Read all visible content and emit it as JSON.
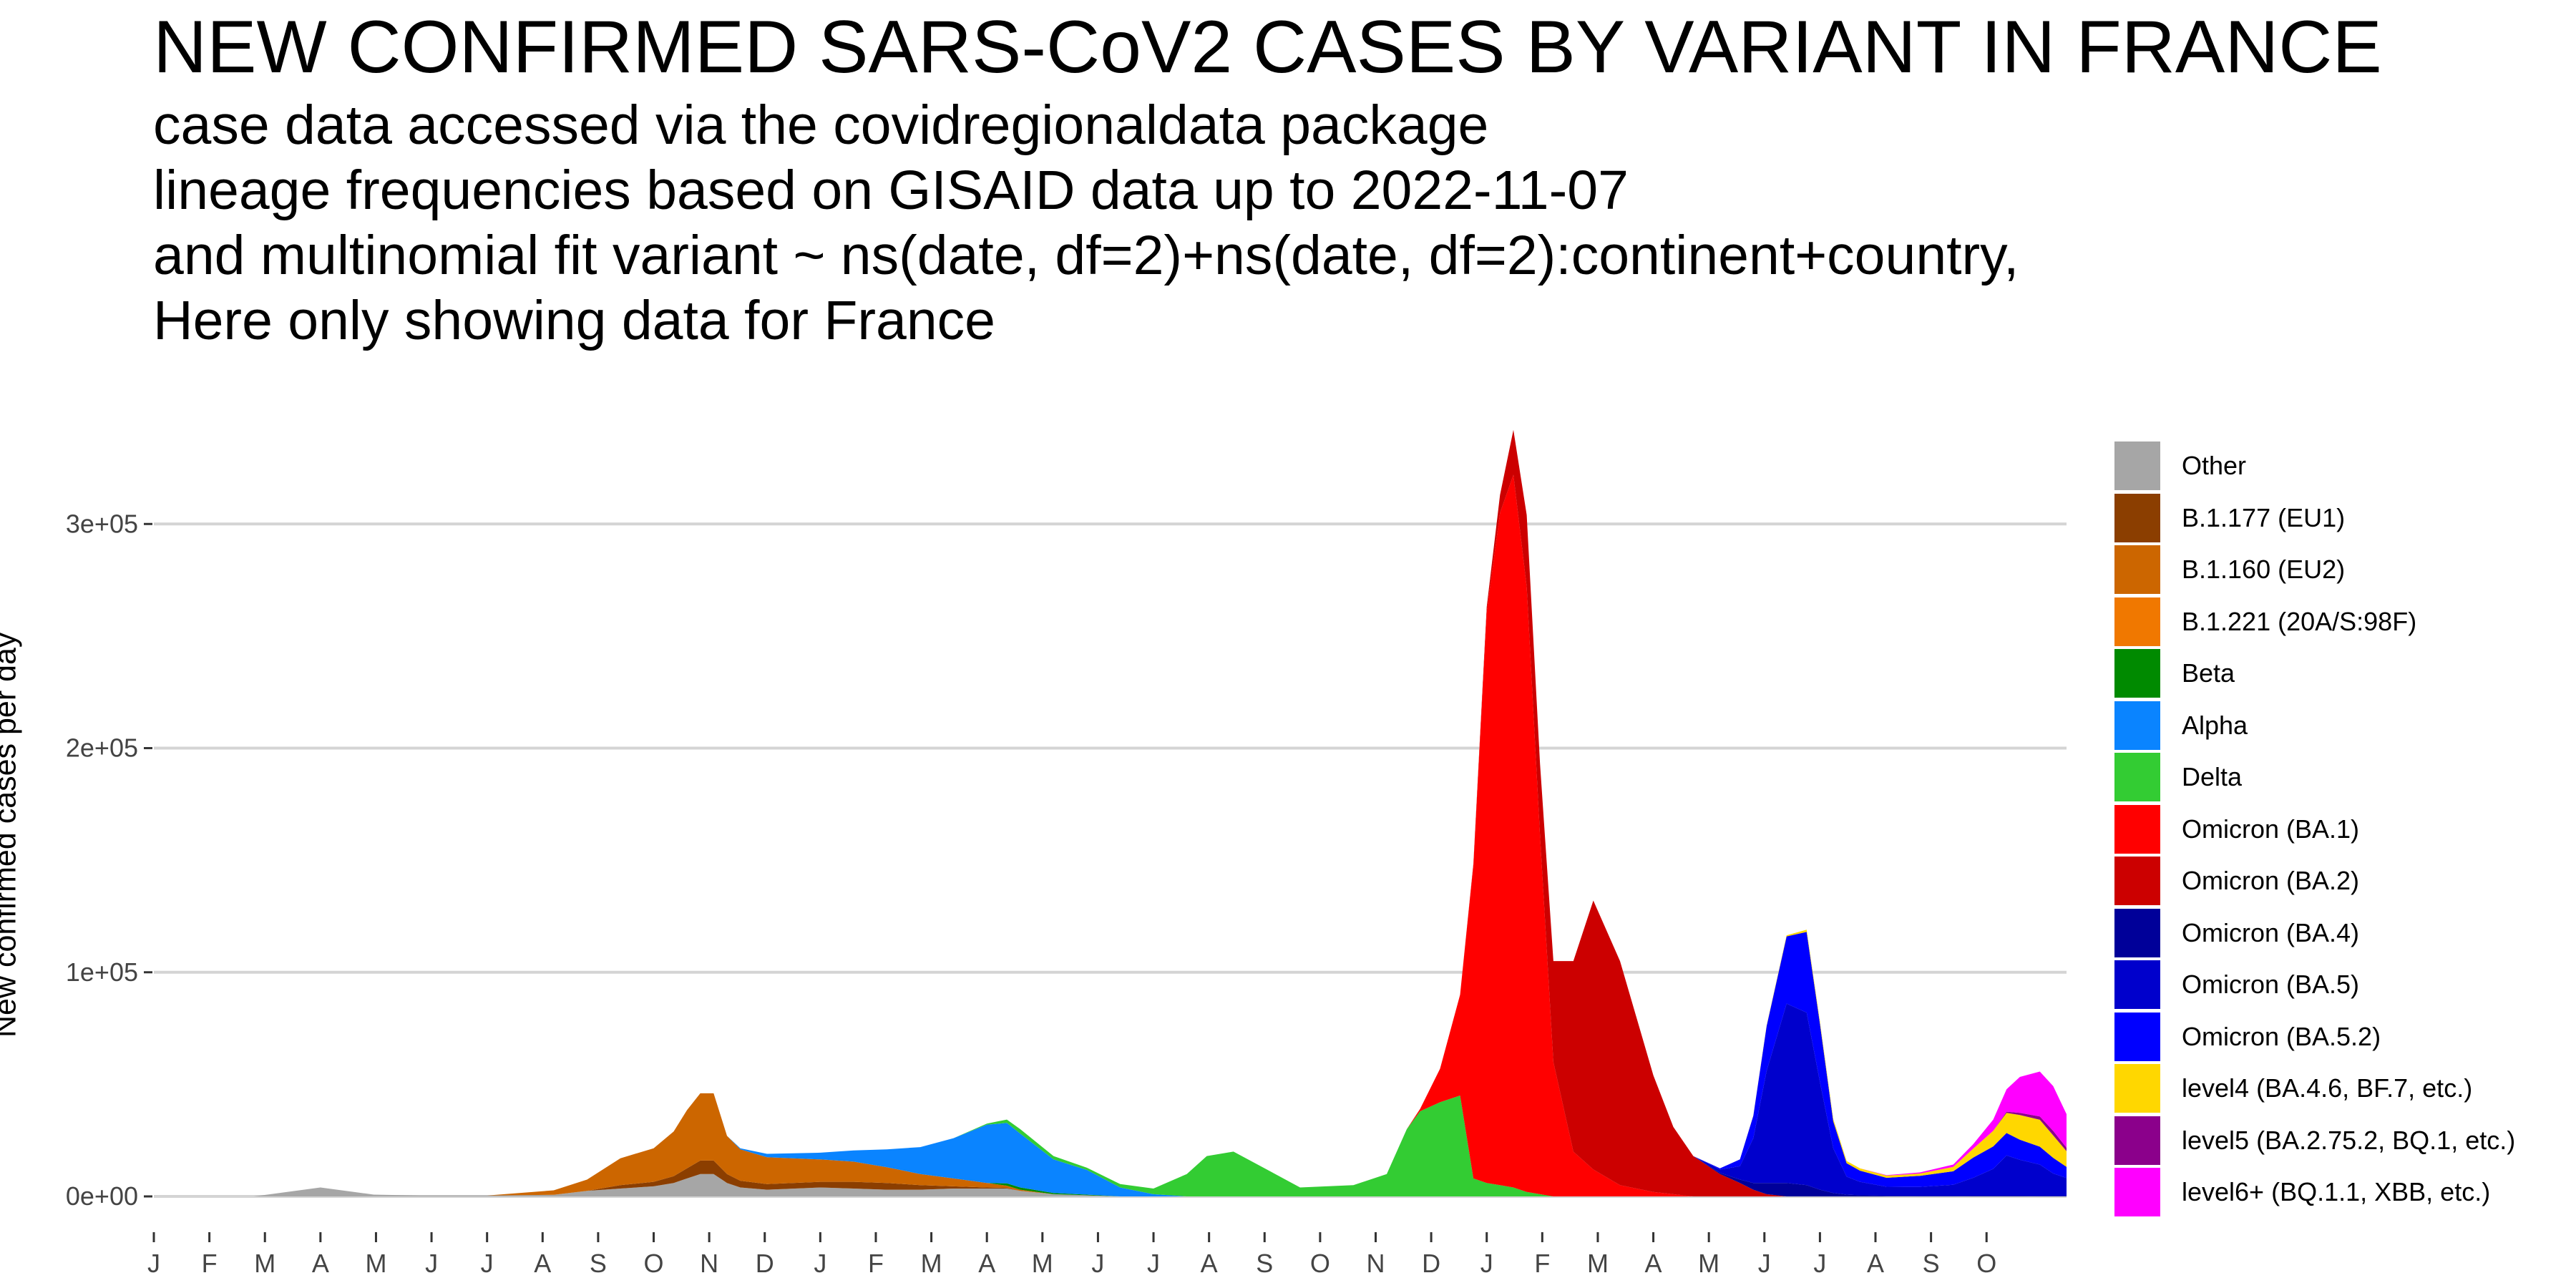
{
  "title": "NEW CONFIRMED SARS-CoV2 CASES BY VARIANT IN FRANCE",
  "subtitle_lines": [
    "case data accessed via the covidregionaldata package",
    "lineage frequencies based on GISAID data up to 2022-11-07",
    "and multinomial fit variant ~ ns(date, df=2)+ns(date, df=2):continent+country,",
    "Here only showing data for France"
  ],
  "chart_data": {
    "type": "area",
    "stacked": true,
    "ylabel": "New confirmed cases per day",
    "xlabel": "",
    "ylim": [
      0,
      355000
    ],
    "y_ticks": [
      0,
      100000,
      200000,
      300000
    ],
    "y_tick_labels": [
      "0e+00",
      "1e+05",
      "2e+05",
      "3e+05"
    ],
    "x_tick_labels": [
      "J",
      "F",
      "M",
      "A",
      "M",
      "J",
      "J",
      "A",
      "S",
      "O",
      "N",
      "D",
      "J",
      "F",
      "M",
      "A",
      "M",
      "J",
      "J",
      "A",
      "S",
      "O",
      "N",
      "D",
      "J",
      "F",
      "M",
      "A",
      "M",
      "J",
      "J",
      "A",
      "S",
      "O"
    ],
    "x_range_months": [
      2020.0,
      2022.87
    ],
    "grid": true,
    "legend_position": "right",
    "x": [
      2020.0,
      2020.15,
      2020.25,
      2020.3,
      2020.33,
      2020.4,
      2020.5,
      2020.6,
      2020.65,
      2020.7,
      2020.75,
      2020.78,
      2020.8,
      2020.82,
      2020.84,
      2020.86,
      2020.88,
      2020.92,
      2021.0,
      2021.05,
      2021.1,
      2021.15,
      2021.2,
      2021.25,
      2021.28,
      2021.3,
      2021.35,
      2021.4,
      2021.45,
      2021.5,
      2021.55,
      2021.58,
      2021.62,
      2021.67,
      2021.72,
      2021.8,
      2021.85,
      2021.88,
      2021.9,
      2021.93,
      2021.96,
      2021.98,
      2022.0,
      2022.02,
      2022.04,
      2022.06,
      2022.08,
      2022.1,
      2022.13,
      2022.16,
      2022.2,
      2022.25,
      2022.28,
      2022.31,
      2022.35,
      2022.38,
      2022.4,
      2022.42,
      2022.45,
      2022.48,
      2022.5,
      2022.52,
      2022.54,
      2022.56,
      2022.6,
      2022.65,
      2022.7,
      2022.73,
      2022.76,
      2022.78,
      2022.8,
      2022.83,
      2022.85,
      2022.87
    ],
    "series": [
      {
        "name": "Other",
        "color": "#A6A6A6",
        "values": [
          0,
          0,
          4000,
          2000,
          800,
          400,
          400,
          700,
          2500,
          3500,
          4500,
          6000,
          8000,
          10000,
          10000,
          6000,
          4000,
          3000,
          4000,
          3500,
          3000,
          3000,
          3500,
          3500,
          3500,
          2500,
          1000,
          500,
          0,
          0,
          0,
          0,
          0,
          0,
          0,
          0,
          0,
          0,
          0,
          0,
          0,
          0,
          0,
          0,
          0,
          0,
          0,
          0,
          0,
          0,
          0,
          0,
          0,
          0,
          0,
          0,
          0,
          0,
          0,
          0,
          0,
          0,
          0,
          0,
          0,
          0,
          0,
          0,
          0,
          0,
          0,
          0,
          0,
          0
        ]
      },
      {
        "name": "B.1.177 (EU1)",
        "color": "#8B3E00",
        "values": [
          0,
          0,
          0,
          0,
          0,
          0,
          0,
          0,
          0,
          1500,
          2000,
          3000,
          4500,
          6000,
          6000,
          4000,
          3000,
          2500,
          2500,
          3000,
          3000,
          2000,
          1000,
          500,
          300,
          0,
          0,
          0,
          0,
          0,
          0,
          0,
          0,
          0,
          0,
          0,
          0,
          0,
          0,
          0,
          0,
          0,
          0,
          0,
          0,
          0,
          0,
          0,
          0,
          0,
          0,
          0,
          0,
          0,
          0,
          0,
          0,
          0,
          0,
          0,
          0,
          0,
          0,
          0,
          0,
          0,
          0,
          0,
          0,
          0,
          0,
          0,
          0,
          0
        ]
      },
      {
        "name": "B.1.160 (EU2)",
        "color": "#CC6600",
        "values": [
          0,
          0,
          0,
          0,
          0,
          0,
          0,
          2000,
          5000,
          12000,
          15000,
          20000,
          26000,
          30000,
          30000,
          17000,
          14000,
          12000,
          10000,
          9000,
          7000,
          5000,
          3500,
          2000,
          1000,
          500,
          0,
          0,
          0,
          0,
          0,
          0,
          0,
          0,
          0,
          0,
          0,
          0,
          0,
          0,
          0,
          0,
          0,
          0,
          0,
          0,
          0,
          0,
          0,
          0,
          0,
          0,
          0,
          0,
          0,
          0,
          0,
          0,
          0,
          0,
          0,
          0,
          0,
          0,
          0,
          0,
          0,
          0,
          0,
          0,
          0,
          0,
          0,
          0
        ]
      },
      {
        "name": "B.1.221 (20A/S:98F)",
        "color": "#F07800",
        "values": [
          0,
          0,
          0,
          0,
          0,
          0,
          0,
          0,
          0,
          0,
          0,
          0,
          0,
          0,
          0,
          0,
          0,
          0,
          0,
          0,
          0,
          0,
          0,
          0,
          0,
          0,
          0,
          0,
          0,
          0,
          0,
          0,
          0,
          0,
          0,
          0,
          0,
          0,
          0,
          0,
          0,
          0,
          0,
          0,
          0,
          0,
          0,
          0,
          0,
          0,
          0,
          0,
          0,
          0,
          0,
          0,
          0,
          0,
          0,
          0,
          0,
          0,
          0,
          0,
          0,
          0,
          0,
          0,
          0,
          0,
          0,
          0,
          0,
          0
        ]
      },
      {
        "name": "Beta",
        "color": "#008A00",
        "values": [
          0,
          0,
          0,
          0,
          0,
          0,
          0,
          0,
          0,
          0,
          0,
          0,
          0,
          0,
          0,
          0,
          0,
          0,
          0,
          0,
          0,
          0,
          0,
          0,
          1000,
          1000,
          500,
          300,
          0,
          0,
          0,
          0,
          0,
          0,
          0,
          0,
          0,
          0,
          0,
          0,
          0,
          0,
          0,
          0,
          0,
          0,
          0,
          0,
          0,
          0,
          0,
          0,
          0,
          0,
          0,
          0,
          0,
          0,
          0,
          0,
          0,
          0,
          0,
          0,
          0,
          0,
          0,
          0,
          0,
          0,
          0,
          0,
          0,
          0
        ]
      },
      {
        "name": "Alpha",
        "color": "#0A84FF",
        "values": [
          0,
          0,
          0,
          0,
          0,
          0,
          0,
          0,
          0,
          0,
          0,
          0,
          0,
          0,
          0,
          0,
          500,
          1500,
          3000,
          5000,
          8000,
          12000,
          18000,
          26000,
          27000,
          24000,
          15000,
          11000,
          4000,
          1000,
          0,
          0,
          0,
          0,
          0,
          0,
          0,
          0,
          0,
          0,
          0,
          0,
          0,
          0,
          0,
          0,
          0,
          0,
          0,
          0,
          0,
          0,
          0,
          0,
          0,
          0,
          0,
          0,
          0,
          0,
          0,
          0,
          0,
          0,
          0,
          0,
          0,
          0,
          0,
          0,
          0,
          0,
          0,
          0
        ]
      },
      {
        "name": "Delta",
        "color": "#33CC33",
        "values": [
          0,
          0,
          0,
          0,
          0,
          0,
          0,
          0,
          0,
          0,
          0,
          0,
          0,
          0,
          0,
          0,
          0,
          0,
          0,
          0,
          0,
          0,
          0,
          500,
          1500,
          2000,
          1500,
          1000,
          1500,
          2500,
          10000,
          18000,
          20000,
          12000,
          4000,
          5000,
          10000,
          30000,
          38000,
          42000,
          45000,
          8000,
          6000,
          5000,
          4000,
          2000,
          1000,
          0,
          0,
          0,
          0,
          0,
          0,
          0,
          0,
          0,
          0,
          0,
          0,
          0,
          0,
          0,
          0,
          0,
          0,
          0,
          0,
          0,
          0,
          0,
          0,
          0,
          0,
          0
        ]
      },
      {
        "name": "Omicron (BA.1)",
        "color": "#FF0000",
        "values": [
          0,
          0,
          0,
          0,
          0,
          0,
          0,
          0,
          0,
          0,
          0,
          0,
          0,
          0,
          0,
          0,
          0,
          0,
          0,
          0,
          0,
          0,
          0,
          0,
          0,
          0,
          0,
          0,
          0,
          0,
          0,
          0,
          0,
          0,
          0,
          0,
          0,
          0,
          1000,
          15000,
          45000,
          140000,
          255000,
          300000,
          318000,
          270000,
          160000,
          60000,
          20000,
          12000,
          5000,
          2000,
          1000,
          0,
          0,
          0,
          0,
          0,
          0,
          0,
          0,
          0,
          0,
          0,
          0,
          0,
          0,
          0,
          0,
          0,
          0,
          0,
          0,
          0
        ]
      },
      {
        "name": "Omicron (BA.2)",
        "color": "#CC0000",
        "values": [
          0,
          0,
          0,
          0,
          0,
          0,
          0,
          0,
          0,
          0,
          0,
          0,
          0,
          0,
          0,
          0,
          0,
          0,
          0,
          0,
          0,
          0,
          0,
          0,
          0,
          0,
          0,
          0,
          0,
          0,
          0,
          0,
          0,
          0,
          0,
          0,
          0,
          0,
          0,
          0,
          0,
          500,
          2000,
          8000,
          20000,
          32000,
          32000,
          45000,
          85000,
          120000,
          100000,
          52000,
          30000,
          18000,
          10000,
          6000,
          3000,
          1000,
          0,
          0,
          0,
          0,
          0,
          0,
          0,
          0,
          0,
          0,
          0,
          0,
          0,
          0,
          0,
          0
        ]
      },
      {
        "name": "Omicron (BA.4)",
        "color": "#000099",
        "values": [
          0,
          0,
          0,
          0,
          0,
          0,
          0,
          0,
          0,
          0,
          0,
          0,
          0,
          0,
          0,
          0,
          0,
          0,
          0,
          0,
          0,
          0,
          0,
          0,
          0,
          0,
          0,
          0,
          0,
          0,
          0,
          0,
          0,
          0,
          0,
          0,
          0,
          0,
          0,
          0,
          0,
          0,
          0,
          0,
          0,
          0,
          0,
          0,
          0,
          0,
          0,
          0,
          0,
          0,
          500,
          1500,
          3000,
          5000,
          6000,
          5000,
          3000,
          1500,
          800,
          500,
          300,
          200,
          200,
          300,
          300,
          300,
          300,
          200,
          200,
          200
        ]
      },
      {
        "name": "Omicron (BA.5)",
        "color": "#0000CC",
        "values": [
          0,
          0,
          0,
          0,
          0,
          0,
          0,
          0,
          0,
          0,
          0,
          0,
          0,
          0,
          0,
          0,
          0,
          0,
          0,
          0,
          0,
          0,
          0,
          0,
          0,
          0,
          0,
          0,
          0,
          0,
          0,
          0,
          0,
          0,
          0,
          0,
          0,
          0,
          0,
          0,
          0,
          0,
          0,
          0,
          0,
          0,
          0,
          0,
          0,
          0,
          0,
          0,
          0,
          0,
          1500,
          6000,
          20000,
          50000,
          80000,
          77000,
          48000,
          20000,
          8000,
          6000,
          4000,
          4000,
          5000,
          8000,
          12000,
          18000,
          16000,
          14000,
          10000,
          8000
        ]
      },
      {
        "name": "Omicron (BA.5.2)",
        "color": "#0000FF",
        "values": [
          0,
          0,
          0,
          0,
          0,
          0,
          0,
          0,
          0,
          0,
          0,
          0,
          0,
          0,
          0,
          0,
          0,
          0,
          0,
          0,
          0,
          0,
          0,
          0,
          0,
          0,
          0,
          0,
          0,
          0,
          0,
          0,
          0,
          0,
          0,
          0,
          0,
          0,
          0,
          0,
          0,
          0,
          0,
          0,
          0,
          0,
          0,
          0,
          0,
          0,
          0,
          0,
          0,
          0,
          500,
          3000,
          10000,
          20000,
          30000,
          36000,
          26000,
          12000,
          6000,
          5000,
          4000,
          5000,
          6000,
          9000,
          10000,
          10000,
          9000,
          8000,
          7000,
          5000
        ]
      },
      {
        "name": "level4 (BA.4.6, BF.7, etc.)",
        "color": "#FFD700",
        "values": [
          0,
          0,
          0,
          0,
          0,
          0,
          0,
          0,
          0,
          0,
          0,
          0,
          0,
          0,
          0,
          0,
          0,
          0,
          0,
          0,
          0,
          0,
          0,
          0,
          0,
          0,
          0,
          0,
          0,
          0,
          0,
          0,
          0,
          0,
          0,
          0,
          0,
          0,
          0,
          0,
          0,
          0,
          0,
          0,
          0,
          0,
          0,
          0,
          0,
          0,
          0,
          0,
          0,
          0,
          0,
          0,
          100,
          300,
          500,
          1000,
          1000,
          1000,
          1000,
          1000,
          1000,
          1000,
          2000,
          4000,
          7000,
          9000,
          11000,
          12000,
          10000,
          7000
        ]
      },
      {
        "name": "level5 (BA.2.75.2, BQ.1, etc.)",
        "color": "#8B008B",
        "values": [
          0,
          0,
          0,
          0,
          0,
          0,
          0,
          0,
          0,
          0,
          0,
          0,
          0,
          0,
          0,
          0,
          0,
          0,
          0,
          0,
          0,
          0,
          0,
          0,
          0,
          0,
          0,
          0,
          0,
          0,
          0,
          0,
          0,
          0,
          0,
          0,
          0,
          0,
          0,
          0,
          0,
          0,
          0,
          0,
          0,
          0,
          0,
          0,
          0,
          0,
          0,
          0,
          0,
          0,
          0,
          0,
          0,
          0,
          0,
          0,
          0,
          0,
          0,
          0,
          0,
          0,
          0,
          0,
          0,
          500,
          1000,
          1500,
          2000,
          1500
        ]
      },
      {
        "name": "level6+ (BQ.1.1, XBB, etc.)",
        "color": "#FF00FF",
        "values": [
          0,
          0,
          0,
          0,
          0,
          0,
          0,
          0,
          0,
          0,
          0,
          0,
          0,
          0,
          0,
          0,
          0,
          0,
          0,
          0,
          0,
          0,
          0,
          0,
          0,
          0,
          0,
          0,
          0,
          0,
          0,
          0,
          0,
          0,
          0,
          0,
          0,
          0,
          0,
          0,
          0,
          0,
          0,
          0,
          0,
          0,
          0,
          0,
          0,
          0,
          0,
          0,
          0,
          0,
          0,
          0,
          0,
          0,
          0,
          0,
          0,
          0,
          0,
          0,
          200,
          500,
          1000,
          2000,
          5000,
          10000,
          16000,
          20000,
          20000,
          15000
        ]
      }
    ]
  }
}
